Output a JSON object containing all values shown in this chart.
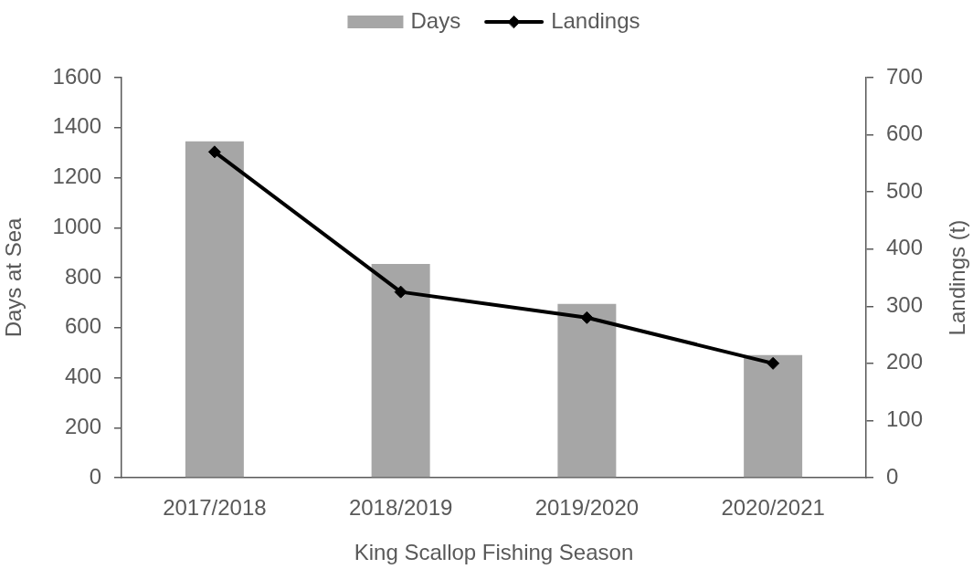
{
  "chart_data": {
    "type": "bar",
    "xlabel": "King Scallop Fishing Season",
    "ylabel": "Days at Sea",
    "y2label": "Landings (t)",
    "categories": [
      "2017/2018",
      "2018/2019",
      "2019/2020",
      "2020/2021"
    ],
    "series": [
      {
        "name": "Days",
        "color": "#a6a6a6",
        "values": [
          1345,
          855,
          695,
          490
        ]
      },
      {
        "name": "Landings",
        "type": "line",
        "axis": "y2",
        "color": "#000000",
        "values": [
          570,
          325,
          280,
          200
        ]
      }
    ],
    "ylim": [
      0,
      1600
    ],
    "yticks": [
      0,
      200,
      400,
      600,
      800,
      1000,
      1200,
      1400,
      1600
    ],
    "y2lim": [
      0,
      700
    ],
    "y2ticks": [
      0,
      100,
      200,
      300,
      400,
      500,
      600,
      700
    ],
    "legend": "top",
    "marker": "diamond",
    "grid": false
  }
}
